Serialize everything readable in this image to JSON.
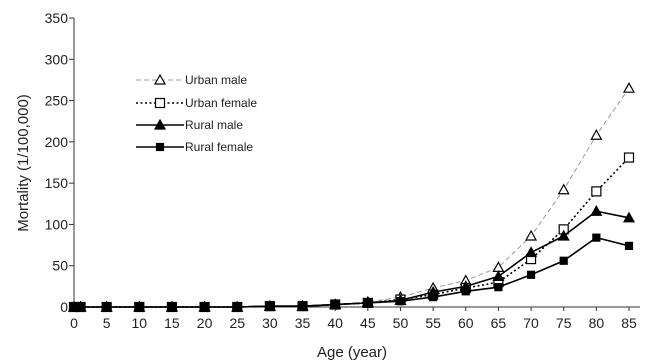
{
  "chart_data": {
    "type": "line",
    "title": "",
    "xlabel": "Age (year)",
    "ylabel": "Mortality (1/100,000)",
    "xlim": [
      0,
      86
    ],
    "ylim": [
      0,
      350
    ],
    "x_ticks": [
      0,
      5,
      10,
      15,
      20,
      25,
      30,
      35,
      40,
      45,
      50,
      55,
      60,
      65,
      70,
      75,
      80,
      85
    ],
    "y_ticks": [
      0,
      50,
      100,
      150,
      200,
      250,
      300,
      350
    ],
    "grid": false,
    "legend_position": "upper-left",
    "x": [
      0,
      1,
      5,
      10,
      15,
      20,
      25,
      30,
      35,
      40,
      45,
      50,
      55,
      60,
      65,
      70,
      75,
      80,
      85
    ],
    "series": [
      {
        "name": "Urban  male",
        "line_style": "dashed",
        "line_color": "#9a9a9a",
        "marker": "triangle-open",
        "values": [
          0,
          0,
          0,
          0,
          0,
          0,
          0,
          1,
          1,
          3,
          6,
          12,
          23,
          32,
          48,
          86,
          142,
          208,
          265
        ]
      },
      {
        "name": "Urban  female",
        "line_style": "dotted",
        "line_color": "#000000",
        "marker": "square-open",
        "values": [
          0,
          0,
          0,
          0,
          0,
          0,
          0,
          1,
          1,
          3,
          5,
          9,
          15,
          23,
          30,
          58,
          94,
          140,
          181
        ]
      },
      {
        "name": "Rural  male",
        "line_style": "solid",
        "line_color": "#000000",
        "marker": "triangle-filled",
        "values": [
          0,
          0,
          0,
          0,
          0,
          0,
          0,
          1,
          1,
          3,
          5,
          8,
          18,
          25,
          37,
          66,
          86,
          116,
          108
        ]
      },
      {
        "name": "Rural  female",
        "line_style": "solid",
        "line_color": "#000000",
        "marker": "square-filled",
        "values": [
          0,
          0,
          0,
          0,
          0,
          0,
          0,
          1,
          1,
          3,
          5,
          7,
          12,
          19,
          24,
          39,
          56,
          84,
          74
        ]
      }
    ]
  }
}
